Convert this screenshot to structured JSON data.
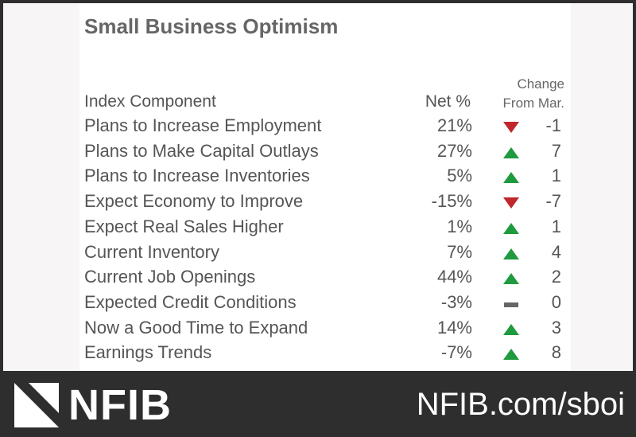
{
  "title": "Small Business Optimism",
  "headers": {
    "component": "Index Component",
    "net": "Net %",
    "change_line1": "Change",
    "change_line2": "From Mar."
  },
  "colors": {
    "up": "#1f9a3e",
    "down": "#c0272d",
    "flat": "#666666"
  },
  "rows": [
    {
      "label": "Plans to Increase Employment",
      "net": "21%",
      "direction": "down",
      "change": "-1"
    },
    {
      "label": "Plans to Make Capital Outlays",
      "net": "27%",
      "direction": "up",
      "change": "7"
    },
    {
      "label": "Plans to Increase Inventories",
      "net": "5%",
      "direction": "up",
      "change": "1"
    },
    {
      "label": "Expect Economy to Improve",
      "net": "-15%",
      "direction": "down",
      "change": "-7"
    },
    {
      "label": "Expect Real Sales Higher",
      "net": "1%",
      "direction": "up",
      "change": "1"
    },
    {
      "label": "Current Inventory",
      "net": "7%",
      "direction": "up",
      "change": "4"
    },
    {
      "label": "Current Job Openings",
      "net": "44%",
      "direction": "up",
      "change": "2"
    },
    {
      "label": "Expected Credit Conditions",
      "net": "-3%",
      "direction": "flat",
      "change": "0"
    },
    {
      "label": "Now a Good Time to Expand",
      "net": "14%",
      "direction": "up",
      "change": "3"
    },
    {
      "label": "Earnings Trends",
      "net": "-7%",
      "direction": "up",
      "change": "8"
    }
  ],
  "footer": {
    "logo": "NFIB",
    "url": "NFIB.com/sboi"
  }
}
